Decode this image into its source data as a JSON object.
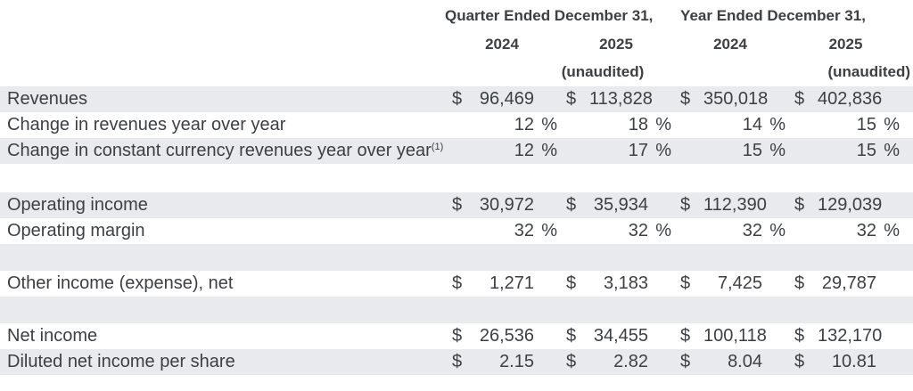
{
  "colors": {
    "row_shade": "#e8eaee",
    "text": "#3d4043",
    "background": "#ffffff"
  },
  "header": {
    "quarter_title": "Quarter Ended December 31,",
    "year_title": "Year Ended December 31,",
    "col_years": [
      "2024",
      "2025",
      "2024",
      "2025"
    ],
    "unaudited_quarter": "(unaudited)",
    "unaudited_year": "(unaudited)"
  },
  "rows": [
    {
      "type": "data",
      "shaded": true,
      "label": "Revenues",
      "sup": "",
      "values": [
        {
          "cur": "$",
          "num": "96,469",
          "pct": ""
        },
        {
          "cur": "$",
          "num": "113,828",
          "pct": ""
        },
        {
          "cur": "$",
          "num": "350,018",
          "pct": ""
        },
        {
          "cur": "$",
          "num": "402,836",
          "pct": ""
        }
      ]
    },
    {
      "type": "data",
      "shaded": false,
      "label": "Change in revenues year over year",
      "sup": "",
      "values": [
        {
          "cur": "",
          "num": "12",
          "pct": "%"
        },
        {
          "cur": "",
          "num": "18",
          "pct": "%"
        },
        {
          "cur": "",
          "num": "14",
          "pct": "%"
        },
        {
          "cur": "",
          "num": "15",
          "pct": "%"
        }
      ]
    },
    {
      "type": "data",
      "shaded": true,
      "label": "Change in constant currency revenues year over year",
      "sup": "(1)",
      "values": [
        {
          "cur": "",
          "num": "12",
          "pct": "%"
        },
        {
          "cur": "",
          "num": "17",
          "pct": "%"
        },
        {
          "cur": "",
          "num": "15",
          "pct": "%"
        },
        {
          "cur": "",
          "num": "15",
          "pct": "%"
        }
      ]
    },
    {
      "type": "spacer",
      "shaded": false,
      "label": "",
      "sup": "",
      "values": []
    },
    {
      "type": "data",
      "shaded": true,
      "label": "Operating income",
      "sup": "",
      "values": [
        {
          "cur": "$",
          "num": "30,972",
          "pct": ""
        },
        {
          "cur": "$",
          "num": "35,934",
          "pct": ""
        },
        {
          "cur": "$",
          "num": "112,390",
          "pct": ""
        },
        {
          "cur": "$",
          "num": "129,039",
          "pct": ""
        }
      ]
    },
    {
      "type": "data",
      "shaded": false,
      "label": "Operating margin",
      "sup": "",
      "values": [
        {
          "cur": "",
          "num": "32",
          "pct": "%"
        },
        {
          "cur": "",
          "num": "32",
          "pct": "%"
        },
        {
          "cur": "",
          "num": "32",
          "pct": "%"
        },
        {
          "cur": "",
          "num": "32",
          "pct": "%"
        }
      ]
    },
    {
      "type": "blank",
      "shaded": true,
      "label": "",
      "sup": "",
      "values": []
    },
    {
      "type": "data",
      "shaded": false,
      "label": "Other income (expense), net",
      "sup": "",
      "values": [
        {
          "cur": "$",
          "num": "1,271",
          "pct": ""
        },
        {
          "cur": "$",
          "num": "3,183",
          "pct": ""
        },
        {
          "cur": "$",
          "num": "7,425",
          "pct": ""
        },
        {
          "cur": "$",
          "num": "29,787",
          "pct": ""
        }
      ]
    },
    {
      "type": "blank",
      "shaded": true,
      "label": "",
      "sup": "",
      "values": []
    },
    {
      "type": "data",
      "shaded": false,
      "label": "Net income",
      "sup": "",
      "values": [
        {
          "cur": "$",
          "num": "26,536",
          "pct": ""
        },
        {
          "cur": "$",
          "num": "34,455",
          "pct": ""
        },
        {
          "cur": "$",
          "num": "100,118",
          "pct": ""
        },
        {
          "cur": "$",
          "num": "132,170",
          "pct": ""
        }
      ]
    },
    {
      "type": "data",
      "shaded": true,
      "label": "Diluted net income per share",
      "sup": "",
      "values": [
        {
          "cur": "$",
          "num": "2.15",
          "pct": ""
        },
        {
          "cur": "$",
          "num": "2.82",
          "pct": ""
        },
        {
          "cur": "$",
          "num": "8.04",
          "pct": ""
        },
        {
          "cur": "$",
          "num": "10.81",
          "pct": ""
        }
      ]
    }
  ]
}
